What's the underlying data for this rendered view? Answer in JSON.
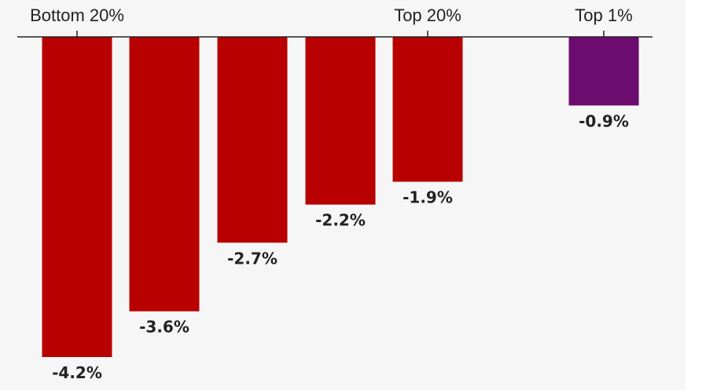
{
  "chart_data": {
    "type": "bar",
    "categories": [
      "Bottom 20%",
      "",
      "",
      "",
      "Top 20%",
      "Top 1%"
    ],
    "values": [
      -4.2,
      -3.6,
      -2.7,
      -2.2,
      -1.9,
      -0.9
    ],
    "value_labels": [
      "-4.2%",
      "-3.6%",
      "-2.7%",
      "-2.2%",
      "-1.9%",
      "-0.9%"
    ],
    "title": "",
    "xlabel": "",
    "ylabel": "",
    "ylim": [
      -4.2,
      0
    ],
    "grid": false,
    "legend": "none",
    "colors": [
      "#b80000",
      "#b80000",
      "#b80000",
      "#b80000",
      "#b80000",
      "#6b0c6e"
    ]
  }
}
